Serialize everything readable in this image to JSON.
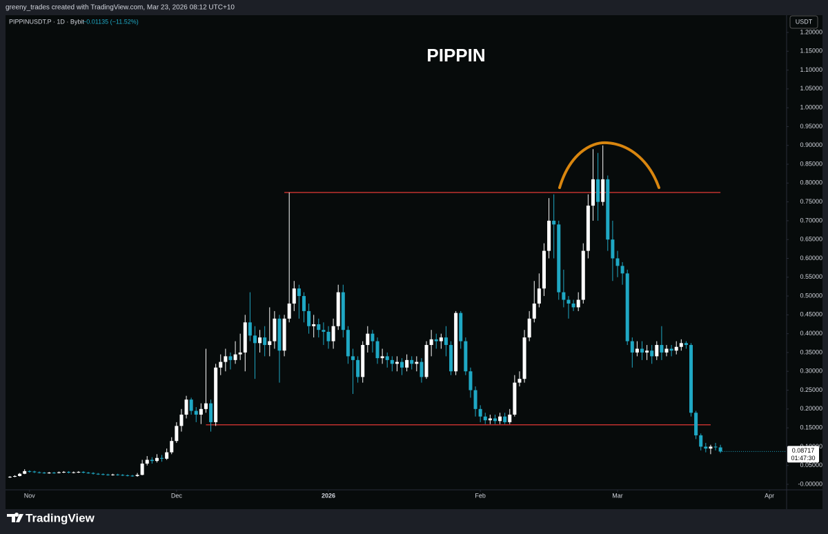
{
  "header": {
    "credit": "greeny_trades created with TradingView.com, Mar 23, 2026 08:12 UTC+10",
    "symbol": "PIPPINUSDT.P · 1D · Bybit",
    "change": "−0.01135 (−11.52%)",
    "currency": "USDT",
    "brand": "TradingView"
  },
  "chart_data": {
    "type": "candlestick",
    "title": "PIPPIN",
    "up_color": "#ffffff",
    "down_color": "#1fa8c4",
    "x": [
      -4,
      -3,
      -2,
      -1,
      0,
      1,
      2,
      3,
      4,
      5,
      6,
      7,
      8,
      9,
      10,
      11,
      12,
      13,
      14,
      15,
      16,
      17,
      18,
      19,
      20,
      21,
      22,
      23,
      24,
      25,
      26,
      27,
      28,
      29,
      30,
      31,
      32,
      33,
      34,
      35,
      36,
      37,
      38,
      39,
      40,
      41,
      42,
      43,
      44,
      45,
      46,
      47,
      48,
      49,
      50,
      51,
      52,
      53,
      54,
      55,
      56,
      57,
      58,
      59,
      60,
      61,
      62,
      63,
      64,
      65,
      66,
      67,
      68,
      69,
      70,
      71,
      72,
      73,
      74,
      75,
      76,
      77,
      78,
      79,
      80,
      81,
      82,
      83,
      84,
      85,
      86,
      87,
      88,
      89,
      90,
      91,
      92,
      93,
      94,
      95,
      96,
      97,
      98,
      99,
      100,
      101,
      102,
      103,
      104,
      105,
      106,
      107,
      108,
      109,
      110,
      111,
      112,
      113,
      114,
      115,
      116,
      117,
      118,
      119,
      120,
      121,
      122,
      123,
      124,
      125,
      126,
      127,
      128,
      129,
      130,
      131,
      132,
      133,
      134,
      135,
      136,
      137,
      138,
      139,
      140,
      141
    ],
    "open": [
      0.019,
      0.02,
      0.022,
      0.028,
      0.035,
      0.034,
      0.032,
      0.031,
      0.03,
      0.031,
      0.03,
      0.032,
      0.033,
      0.031,
      0.032,
      0.033,
      0.031,
      0.03,
      0.028,
      0.027,
      0.026,
      0.025,
      0.026,
      0.025,
      0.024,
      0.023,
      0.022,
      0.025,
      0.055,
      0.065,
      0.062,
      0.07,
      0.068,
      0.085,
      0.115,
      0.155,
      0.185,
      0.225,
      0.195,
      0.185,
      0.2,
      0.215,
      0.165,
      0.31,
      0.325,
      0.34,
      0.33,
      0.345,
      0.35,
      0.43,
      0.395,
      0.375,
      0.39,
      0.37,
      0.38,
      0.44,
      0.355,
      0.44,
      0.48,
      0.52,
      0.5,
      0.46,
      0.42,
      0.425,
      0.41,
      0.405,
      0.38,
      0.42,
      0.51,
      0.41,
      0.34,
      0.33,
      0.285,
      0.37,
      0.4,
      0.38,
      0.335,
      0.34,
      0.33,
      0.32,
      0.325,
      0.31,
      0.33,
      0.32,
      0.325,
      0.285,
      0.37,
      0.385,
      0.38,
      0.39,
      0.37,
      0.3,
      0.455,
      0.38,
      0.3,
      0.25,
      0.2,
      0.18,
      0.17,
      0.175,
      0.168,
      0.18,
      0.165,
      0.185,
      0.27,
      0.28,
      0.39,
      0.44,
      0.48,
      0.52,
      0.62,
      0.7,
      0.69,
      0.51,
      0.49,
      0.48,
      0.47,
      0.49,
      0.62,
      0.74,
      0.81,
      0.75,
      0.81,
      0.65,
      0.6,
      0.58,
      0.56,
      0.38,
      0.35,
      0.36,
      0.35,
      0.355,
      0.34,
      0.37,
      0.35,
      0.36,
      0.355,
      0.365,
      0.375,
      0.37,
      0.19,
      0.13,
      0.1,
      0.095,
      0.1,
      0.098
    ],
    "high": [
      0.022,
      0.024,
      0.03,
      0.04,
      0.037,
      0.036,
      0.034,
      0.033,
      0.033,
      0.033,
      0.034,
      0.035,
      0.035,
      0.034,
      0.035,
      0.035,
      0.033,
      0.032,
      0.03,
      0.029,
      0.028,
      0.028,
      0.028,
      0.027,
      0.026,
      0.025,
      0.03,
      0.065,
      0.075,
      0.072,
      0.08,
      0.078,
      0.095,
      0.125,
      0.165,
      0.2,
      0.235,
      0.23,
      0.205,
      0.215,
      0.36,
      0.225,
      0.32,
      0.345,
      0.36,
      0.35,
      0.38,
      0.4,
      0.45,
      0.51,
      0.42,
      0.41,
      0.42,
      0.47,
      0.46,
      0.45,
      0.45,
      0.775,
      0.54,
      0.53,
      0.51,
      0.48,
      0.45,
      0.44,
      0.43,
      0.42,
      0.44,
      0.53,
      0.53,
      0.42,
      0.36,
      0.34,
      0.38,
      0.42,
      0.41,
      0.39,
      0.36,
      0.35,
      0.34,
      0.34,
      0.335,
      0.345,
      0.34,
      0.34,
      0.335,
      0.38,
      0.41,
      0.4,
      0.4,
      0.42,
      0.38,
      0.46,
      0.46,
      0.39,
      0.31,
      0.26,
      0.21,
      0.19,
      0.185,
      0.185,
      0.19,
      0.19,
      0.2,
      0.29,
      0.3,
      0.41,
      0.46,
      0.54,
      0.56,
      0.64,
      0.76,
      0.77,
      0.7,
      0.57,
      0.5,
      0.49,
      0.51,
      0.64,
      0.77,
      0.89,
      0.88,
      0.9,
      0.82,
      0.7,
      0.62,
      0.59,
      0.57,
      0.39,
      0.38,
      0.38,
      0.37,
      0.37,
      0.38,
      0.42,
      0.37,
      0.37,
      0.38,
      0.385,
      0.38,
      0.375,
      0.195,
      0.135,
      0.11,
      0.105,
      0.11,
      0.105
    ],
    "low": [
      0.017,
      0.019,
      0.021,
      0.027,
      0.031,
      0.03,
      0.029,
      0.028,
      0.028,
      0.028,
      0.029,
      0.03,
      0.029,
      0.029,
      0.03,
      0.029,
      0.028,
      0.026,
      0.025,
      0.024,
      0.023,
      0.023,
      0.023,
      0.022,
      0.021,
      0.02,
      0.02,
      0.024,
      0.05,
      0.055,
      0.058,
      0.06,
      0.065,
      0.08,
      0.11,
      0.14,
      0.175,
      0.185,
      0.165,
      0.16,
      0.19,
      0.14,
      0.155,
      0.29,
      0.3,
      0.305,
      0.32,
      0.33,
      0.3,
      0.38,
      0.28,
      0.35,
      0.34,
      0.34,
      0.36,
      0.27,
      0.34,
      0.43,
      0.46,
      0.44,
      0.43,
      0.4,
      0.39,
      0.39,
      0.37,
      0.36,
      0.36,
      0.41,
      0.39,
      0.32,
      0.24,
      0.27,
      0.27,
      0.35,
      0.35,
      0.32,
      0.32,
      0.31,
      0.3,
      0.3,
      0.29,
      0.3,
      0.305,
      0.3,
      0.27,
      0.28,
      0.34,
      0.36,
      0.36,
      0.34,
      0.29,
      0.29,
      0.36,
      0.29,
      0.23,
      0.18,
      0.165,
      0.16,
      0.16,
      0.16,
      0.16,
      0.16,
      0.16,
      0.18,
      0.26,
      0.27,
      0.38,
      0.43,
      0.47,
      0.5,
      0.6,
      0.6,
      0.49,
      0.47,
      0.44,
      0.46,
      0.46,
      0.48,
      0.6,
      0.7,
      0.7,
      0.74,
      0.62,
      0.54,
      0.55,
      0.53,
      0.37,
      0.31,
      0.34,
      0.33,
      0.33,
      0.32,
      0.33,
      0.33,
      0.34,
      0.34,
      0.345,
      0.355,
      0.36,
      0.18,
      0.12,
      0.09,
      0.085,
      0.08,
      0.09,
      0.083
    ],
    "close": [
      0.02,
      0.022,
      0.028,
      0.035,
      0.034,
      0.032,
      0.031,
      0.03,
      0.031,
      0.03,
      0.032,
      0.033,
      0.031,
      0.032,
      0.033,
      0.031,
      0.03,
      0.028,
      0.027,
      0.026,
      0.025,
      0.026,
      0.025,
      0.024,
      0.023,
      0.022,
      0.025,
      0.055,
      0.065,
      0.062,
      0.07,
      0.068,
      0.085,
      0.115,
      0.155,
      0.185,
      0.225,
      0.195,
      0.185,
      0.2,
      0.215,
      0.165,
      0.31,
      0.325,
      0.34,
      0.33,
      0.345,
      0.35,
      0.43,
      0.395,
      0.375,
      0.39,
      0.37,
      0.38,
      0.44,
      0.355,
      0.44,
      0.48,
      0.52,
      0.5,
      0.46,
      0.42,
      0.425,
      0.41,
      0.405,
      0.38,
      0.42,
      0.51,
      0.41,
      0.34,
      0.33,
      0.285,
      0.37,
      0.4,
      0.38,
      0.335,
      0.34,
      0.33,
      0.32,
      0.325,
      0.31,
      0.33,
      0.32,
      0.325,
      0.285,
      0.37,
      0.385,
      0.38,
      0.39,
      0.37,
      0.3,
      0.455,
      0.38,
      0.3,
      0.25,
      0.2,
      0.18,
      0.17,
      0.175,
      0.168,
      0.18,
      0.165,
      0.185,
      0.27,
      0.28,
      0.39,
      0.44,
      0.48,
      0.52,
      0.62,
      0.7,
      0.69,
      0.51,
      0.49,
      0.48,
      0.47,
      0.49,
      0.62,
      0.74,
      0.81,
      0.75,
      0.81,
      0.65,
      0.6,
      0.58,
      0.56,
      0.38,
      0.35,
      0.36,
      0.35,
      0.355,
      0.34,
      0.37,
      0.35,
      0.36,
      0.355,
      0.365,
      0.375,
      0.37,
      0.19,
      0.13,
      0.1,
      0.095,
      0.1,
      0.098,
      0.087
    ],
    "last_price": 0.08717,
    "countdown": "01:47:30",
    "levels": [
      {
        "y": 0.775,
        "x": [
          52,
          141
        ],
        "color": "#e53935"
      },
      {
        "y": 0.158,
        "x": [
          36,
          139
        ],
        "color": "#e53935"
      }
    ],
    "xlim": [
      -4.9,
      154.5
    ],
    "xticks": [
      {
        "value": 0,
        "label": "Nov"
      },
      {
        "value": 30,
        "label": "Dec"
      },
      {
        "value": 61,
        "label": "2026"
      },
      {
        "value": 92,
        "label": "Feb"
      },
      {
        "value": 120,
        "label": "Mar"
      },
      {
        "value": 151,
        "label": "Apr"
      }
    ],
    "ylim": [
      -0.0147,
      1.2458
    ],
    "yticks": [
      {
        "value": 0,
        "label": "-0.00000"
      },
      {
        "value": 0.05,
        "label": "0.05000"
      },
      {
        "value": 0.1,
        "label": "0.10000"
      },
      {
        "value": 0.15,
        "label": "0.15000"
      },
      {
        "value": 0.2,
        "label": "0.20000"
      },
      {
        "value": 0.25,
        "label": "0.25000"
      },
      {
        "value": 0.3,
        "label": "0.30000"
      },
      {
        "value": 0.35,
        "label": "0.35000"
      },
      {
        "value": 0.4,
        "label": "0.40000"
      },
      {
        "value": 0.45,
        "label": "0.45000"
      },
      {
        "value": 0.5,
        "label": "0.50000"
      },
      {
        "value": 0.55,
        "label": "0.55000"
      },
      {
        "value": 0.6,
        "label": "0.60000"
      },
      {
        "value": 0.65,
        "label": "0.65000"
      },
      {
        "value": 0.7,
        "label": "0.70000"
      },
      {
        "value": 0.75,
        "label": "0.75000"
      },
      {
        "value": 0.8,
        "label": "0.80000"
      },
      {
        "value": 0.85,
        "label": "0.85000"
      },
      {
        "value": 0.9,
        "label": "0.90000"
      },
      {
        "value": 0.95,
        "label": "0.95000"
      },
      {
        "value": 1,
        "label": "1.00000"
      },
      {
        "value": 1.05,
        "label": "1.05000"
      },
      {
        "value": 1.1,
        "label": "1.10000"
      },
      {
        "value": 1.15,
        "label": "1.15000"
      },
      {
        "value": 1.2,
        "label": "1.20000"
      }
    ],
    "grid": false
  }
}
